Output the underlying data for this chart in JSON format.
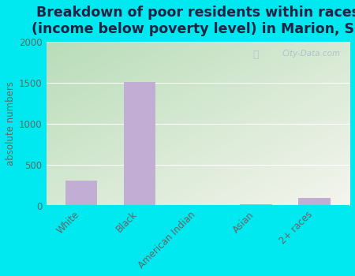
{
  "title": "Breakdown of poor residents within races\n(income below poverty level) in Marion, SC",
  "categories": [
    "White",
    "Black",
    "American Indian",
    "Asian",
    "2+ races"
  ],
  "values": [
    305,
    1510,
    0,
    20,
    95
  ],
  "bar_color": "#c2aed4",
  "ylabel": "absolute numbers",
  "ylim": [
    0,
    2000
  ],
  "yticks": [
    0,
    500,
    1000,
    1500,
    2000
  ],
  "background_outer": "#00e8f0",
  "gradient_top_left": "#b8ddb8",
  "gradient_bottom_right": "#f5f5ee",
  "title_fontsize": 12.5,
  "title_color": "#222244",
  "tick_color": "#666666",
  "watermark": "City-Data.com",
  "ylabel_fontsize": 8.5,
  "tick_fontsize": 8.5
}
